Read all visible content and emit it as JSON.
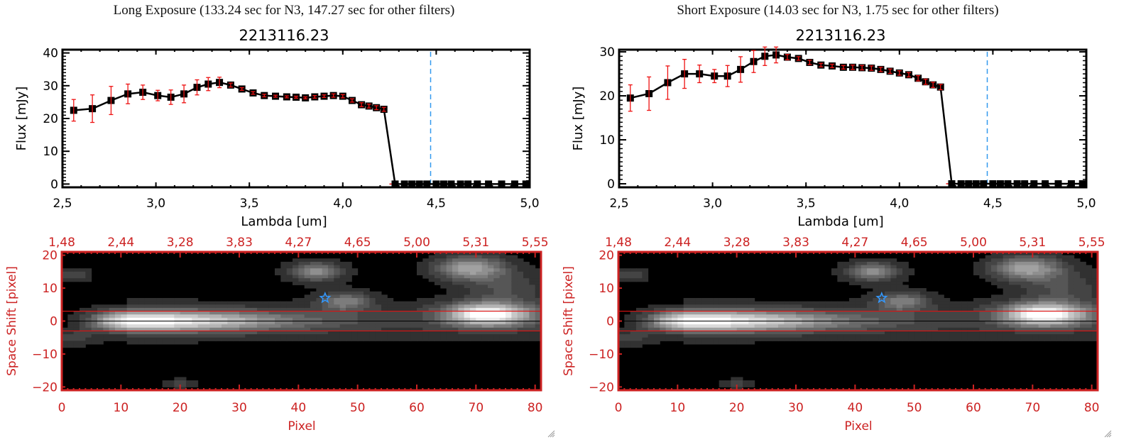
{
  "panels": [
    {
      "exposure_title": "Long Exposure (133.24 sec for N3, 147.27 sec for other filters)",
      "resize_handle": "resize-grip-icon"
    },
    {
      "exposure_title": "Short Exposure (14.03 sec for N3, 1.75 sec for other filters)",
      "resize_handle": "resize-grip-icon"
    }
  ],
  "colors": {
    "axis_black": "#000000",
    "error_red": "#ee1111",
    "image_axis_red": "#cc2222",
    "marker_line_blue": "#3399ee",
    "star_blue": "#3399ff"
  },
  "chart_data": [
    {
      "type": "line",
      "panel": "long",
      "title": "2213116.23",
      "xlabel": "Lambda [um]",
      "ylabel": "Flux [mJy]",
      "xlim": [
        2.5,
        5.0
      ],
      "ylim": [
        -1,
        41
      ],
      "xticks": [
        "2.5",
        "3.0",
        "3.5",
        "4.0",
        "4.5",
        "5.0"
      ],
      "yticks": [
        "0",
        "10",
        "20",
        "30",
        "40"
      ],
      "vline_x": 4.47,
      "zero_line": true,
      "x": [
        2.56,
        2.66,
        2.76,
        2.85,
        2.93,
        3.01,
        3.08,
        3.15,
        3.22,
        3.28,
        3.34,
        3.4,
        3.46,
        3.52,
        3.58,
        3.64,
        3.7,
        3.75,
        3.8,
        3.85,
        3.9,
        3.95,
        4.0,
        4.05,
        4.1,
        4.14,
        4.18,
        4.22,
        4.28,
        4.33,
        4.37,
        4.41,
        4.45,
        4.5,
        4.54,
        4.58,
        4.63,
        4.67,
        4.72,
        4.78,
        4.85,
        4.92,
        4.98
      ],
      "values": [
        22.5,
        23.0,
        25.5,
        27.5,
        28.0,
        27.0,
        26.5,
        27.5,
        29.5,
        30.5,
        31.0,
        30.2,
        29.0,
        27.8,
        27.0,
        26.8,
        26.6,
        26.5,
        26.3,
        26.6,
        26.8,
        27.0,
        26.8,
        25.5,
        24.2,
        23.8,
        23.3,
        22.8,
        0,
        0,
        0,
        0,
        0,
        0,
        0,
        0,
        0,
        0,
        0,
        0,
        0,
        0,
        0
      ],
      "errors": [
        3.3,
        4.2,
        4.3,
        3.0,
        2.2,
        1.6,
        2.2,
        2.7,
        2.3,
        2.0,
        1.6,
        0.6,
        0.4,
        0.4,
        0.4,
        0.3,
        0.3,
        0.3,
        0.3,
        0.4,
        0.4,
        0.5,
        0.5,
        0.5,
        0.6,
        0.6,
        0.6,
        0.6,
        0,
        0,
        0,
        0,
        0,
        0,
        0,
        0,
        0,
        0,
        0,
        0,
        0,
        0,
        0
      ]
    },
    {
      "type": "line",
      "panel": "short",
      "title": "2213116.23",
      "xlabel": "Lambda [um]",
      "ylabel": "Flux [mJy]",
      "xlim": [
        2.5,
        5.0
      ],
      "ylim": [
        -0.8,
        30.5
      ],
      "xticks": [
        "2.5",
        "3.0",
        "3.5",
        "4.0",
        "4.5",
        "5.0"
      ],
      "yticks": [
        "0",
        "10",
        "20",
        "30"
      ],
      "vline_x": 4.47,
      "zero_line": true,
      "x": [
        2.56,
        2.66,
        2.76,
        2.85,
        2.93,
        3.01,
        3.08,
        3.15,
        3.22,
        3.28,
        3.34,
        3.4,
        3.46,
        3.52,
        3.58,
        3.64,
        3.7,
        3.75,
        3.8,
        3.85,
        3.9,
        3.95,
        4.0,
        4.05,
        4.1,
        4.14,
        4.18,
        4.22,
        4.28,
        4.33,
        4.37,
        4.41,
        4.45,
        4.5,
        4.54,
        4.58,
        4.63,
        4.67,
        4.72,
        4.78,
        4.85,
        4.92,
        4.98
      ],
      "values": [
        19.5,
        20.5,
        23.0,
        25.0,
        25.0,
        24.5,
        24.5,
        26.0,
        27.8,
        29.0,
        29.3,
        28.8,
        28.5,
        27.6,
        27.0,
        26.8,
        26.5,
        26.5,
        26.4,
        26.3,
        26.0,
        25.6,
        25.2,
        24.8,
        24.0,
        23.2,
        22.5,
        22.0,
        0,
        0,
        0,
        0,
        0,
        0,
        0,
        0,
        0,
        0,
        0,
        0,
        0,
        0,
        0
      ],
      "errors": [
        3.0,
        3.8,
        3.8,
        3.3,
        2.0,
        1.5,
        2.4,
        2.9,
        2.5,
        2.1,
        1.8,
        0.6,
        0.4,
        0.5,
        0.4,
        0.4,
        0.4,
        0.5,
        0.5,
        0.5,
        0.5,
        0.5,
        0.5,
        0.5,
        0.6,
        0.6,
        0.6,
        0.6,
        0,
        0,
        0,
        0,
        0,
        0,
        0,
        0,
        0,
        0,
        0,
        0,
        0,
        0,
        0
      ]
    },
    {
      "type": "heatmap",
      "panel": "long",
      "xlabel": "Pixel",
      "ylabel": "Space Shift [pixel]",
      "xlim": [
        0,
        81
      ],
      "ylim": [
        -21,
        21
      ],
      "xticks": [
        "0",
        "10",
        "20",
        "30",
        "40",
        "50",
        "60",
        "70",
        "80"
      ],
      "yticks": [
        "-20",
        "-10",
        "0",
        "10",
        "20"
      ],
      "top_xticks": [
        "1.48",
        "2.44",
        "3.28",
        "3.83",
        "4.27",
        "4.65",
        "5.00",
        "5.31",
        "5.55"
      ],
      "aperture_lines_y": [
        3,
        -3
      ],
      "center_line_y": 0,
      "star_marker": {
        "x": 44.5,
        "y": 7
      },
      "sources": [
        {
          "x": 11,
          "y": 0,
          "sx": 4,
          "sy": 2.2,
          "peak": 0.95,
          "tail": 55
        },
        {
          "x": 72,
          "y": 2,
          "sx": 5,
          "sy": 2.4,
          "peak": 1.0,
          "tail": 0
        },
        {
          "x": 69,
          "y": 16,
          "sx": 4,
          "sy": 2.5,
          "peak": 0.6,
          "tail": 0
        },
        {
          "x": 43,
          "y": 15,
          "sx": 3,
          "sy": 2,
          "peak": 0.5,
          "tail": 0
        },
        {
          "x": 48,
          "y": 6,
          "sx": 3,
          "sy": 2,
          "peak": 0.4,
          "tail": 0
        }
      ]
    },
    {
      "type": "heatmap",
      "panel": "short",
      "xlabel": "Pixel",
      "ylabel": "Space Shift [pixel]",
      "xlim": [
        0,
        81
      ],
      "ylim": [
        -21,
        21
      ],
      "xticks": [
        "0",
        "10",
        "20",
        "30",
        "40",
        "50",
        "60",
        "70",
        "80"
      ],
      "yticks": [
        "-20",
        "-10",
        "0",
        "10",
        "20"
      ],
      "top_xticks": [
        "1.48",
        "2.44",
        "3.28",
        "3.83",
        "4.27",
        "4.65",
        "5.00",
        "5.31",
        "5.55"
      ],
      "aperture_lines_y": [
        3,
        -3
      ],
      "center_line_y": 0,
      "star_marker": {
        "x": 44.5,
        "y": 7
      },
      "sources": [
        {
          "x": 11,
          "y": 0,
          "sx": 4,
          "sy": 2.2,
          "peak": 0.95,
          "tail": 55
        },
        {
          "x": 72,
          "y": 2,
          "sx": 5,
          "sy": 2.4,
          "peak": 1.0,
          "tail": 0
        },
        {
          "x": 69,
          "y": 16,
          "sx": 4,
          "sy": 2.5,
          "peak": 0.6,
          "tail": 0
        },
        {
          "x": 43,
          "y": 15,
          "sx": 3,
          "sy": 2,
          "peak": 0.5,
          "tail": 0
        },
        {
          "x": 48,
          "y": 6,
          "sx": 3,
          "sy": 2,
          "peak": 0.4,
          "tail": 0
        }
      ]
    }
  ]
}
